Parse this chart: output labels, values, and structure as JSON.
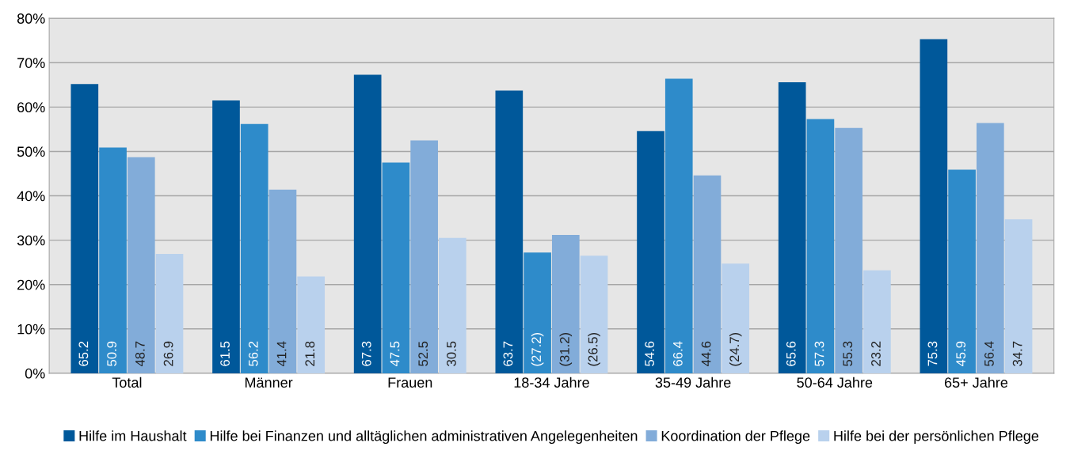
{
  "chart_data": {
    "type": "bar",
    "categories": [
      "Total",
      "Männer",
      "Frauen",
      "18-34 Jahre",
      "35-49 Jahre",
      "50-64 Jahre",
      "65+ Jahre"
    ],
    "series": [
      {
        "name": "Hilfe im Haushalt",
        "color": "#00589a",
        "values": [
          65.2,
          61.5,
          67.3,
          63.7,
          54.6,
          65.6,
          75.3
        ],
        "value_labels": [
          "65.2",
          "61.5",
          "67.3",
          "63.7",
          "54.6",
          "65.6",
          "75.3"
        ]
      },
      {
        "name": "Hilfe bei Finanzen und alltäglichen administrativen Angelegenheiten",
        "color": "#2e8bca",
        "values": [
          50.9,
          56.2,
          47.5,
          27.2,
          66.4,
          57.3,
          45.9
        ],
        "value_labels": [
          "50.9",
          "56.2",
          "47.5",
          "(27.2)",
          "66.4",
          "57.3",
          "45.9"
        ]
      },
      {
        "name": "Koordination der Pflege",
        "color": "#82acd9",
        "values": [
          48.7,
          41.4,
          52.5,
          31.2,
          44.6,
          55.3,
          56.4
        ],
        "value_labels": [
          "48.7",
          "41.4",
          "52.5",
          "(31.2)",
          "44.6",
          "55.3",
          "56.4"
        ]
      },
      {
        "name": "Hilfe bei der persönlichen Pflege",
        "color": "#b9d1ed",
        "values": [
          26.9,
          21.8,
          30.5,
          26.5,
          24.7,
          23.2,
          34.7
        ],
        "value_labels": [
          "26.9",
          "21.8",
          "30.5",
          "(26.5)",
          "(24.7)",
          "23.2",
          "34.7"
        ]
      }
    ],
    "ylim": [
      0,
      80
    ],
    "yticks": [
      {
        "value": 0,
        "label": "0%"
      },
      {
        "value": 10,
        "label": "10%"
      },
      {
        "value": 20,
        "label": "20%"
      },
      {
        "value": 30,
        "label": "30%"
      },
      {
        "value": 40,
        "label": "40%"
      },
      {
        "value": 50,
        "label": "50%"
      },
      {
        "value": 60,
        "label": "60%"
      },
      {
        "value": 70,
        "label": "70%"
      },
      {
        "value": 80,
        "label": "80%"
      }
    ],
    "grid": "y",
    "legend": "bottom"
  }
}
